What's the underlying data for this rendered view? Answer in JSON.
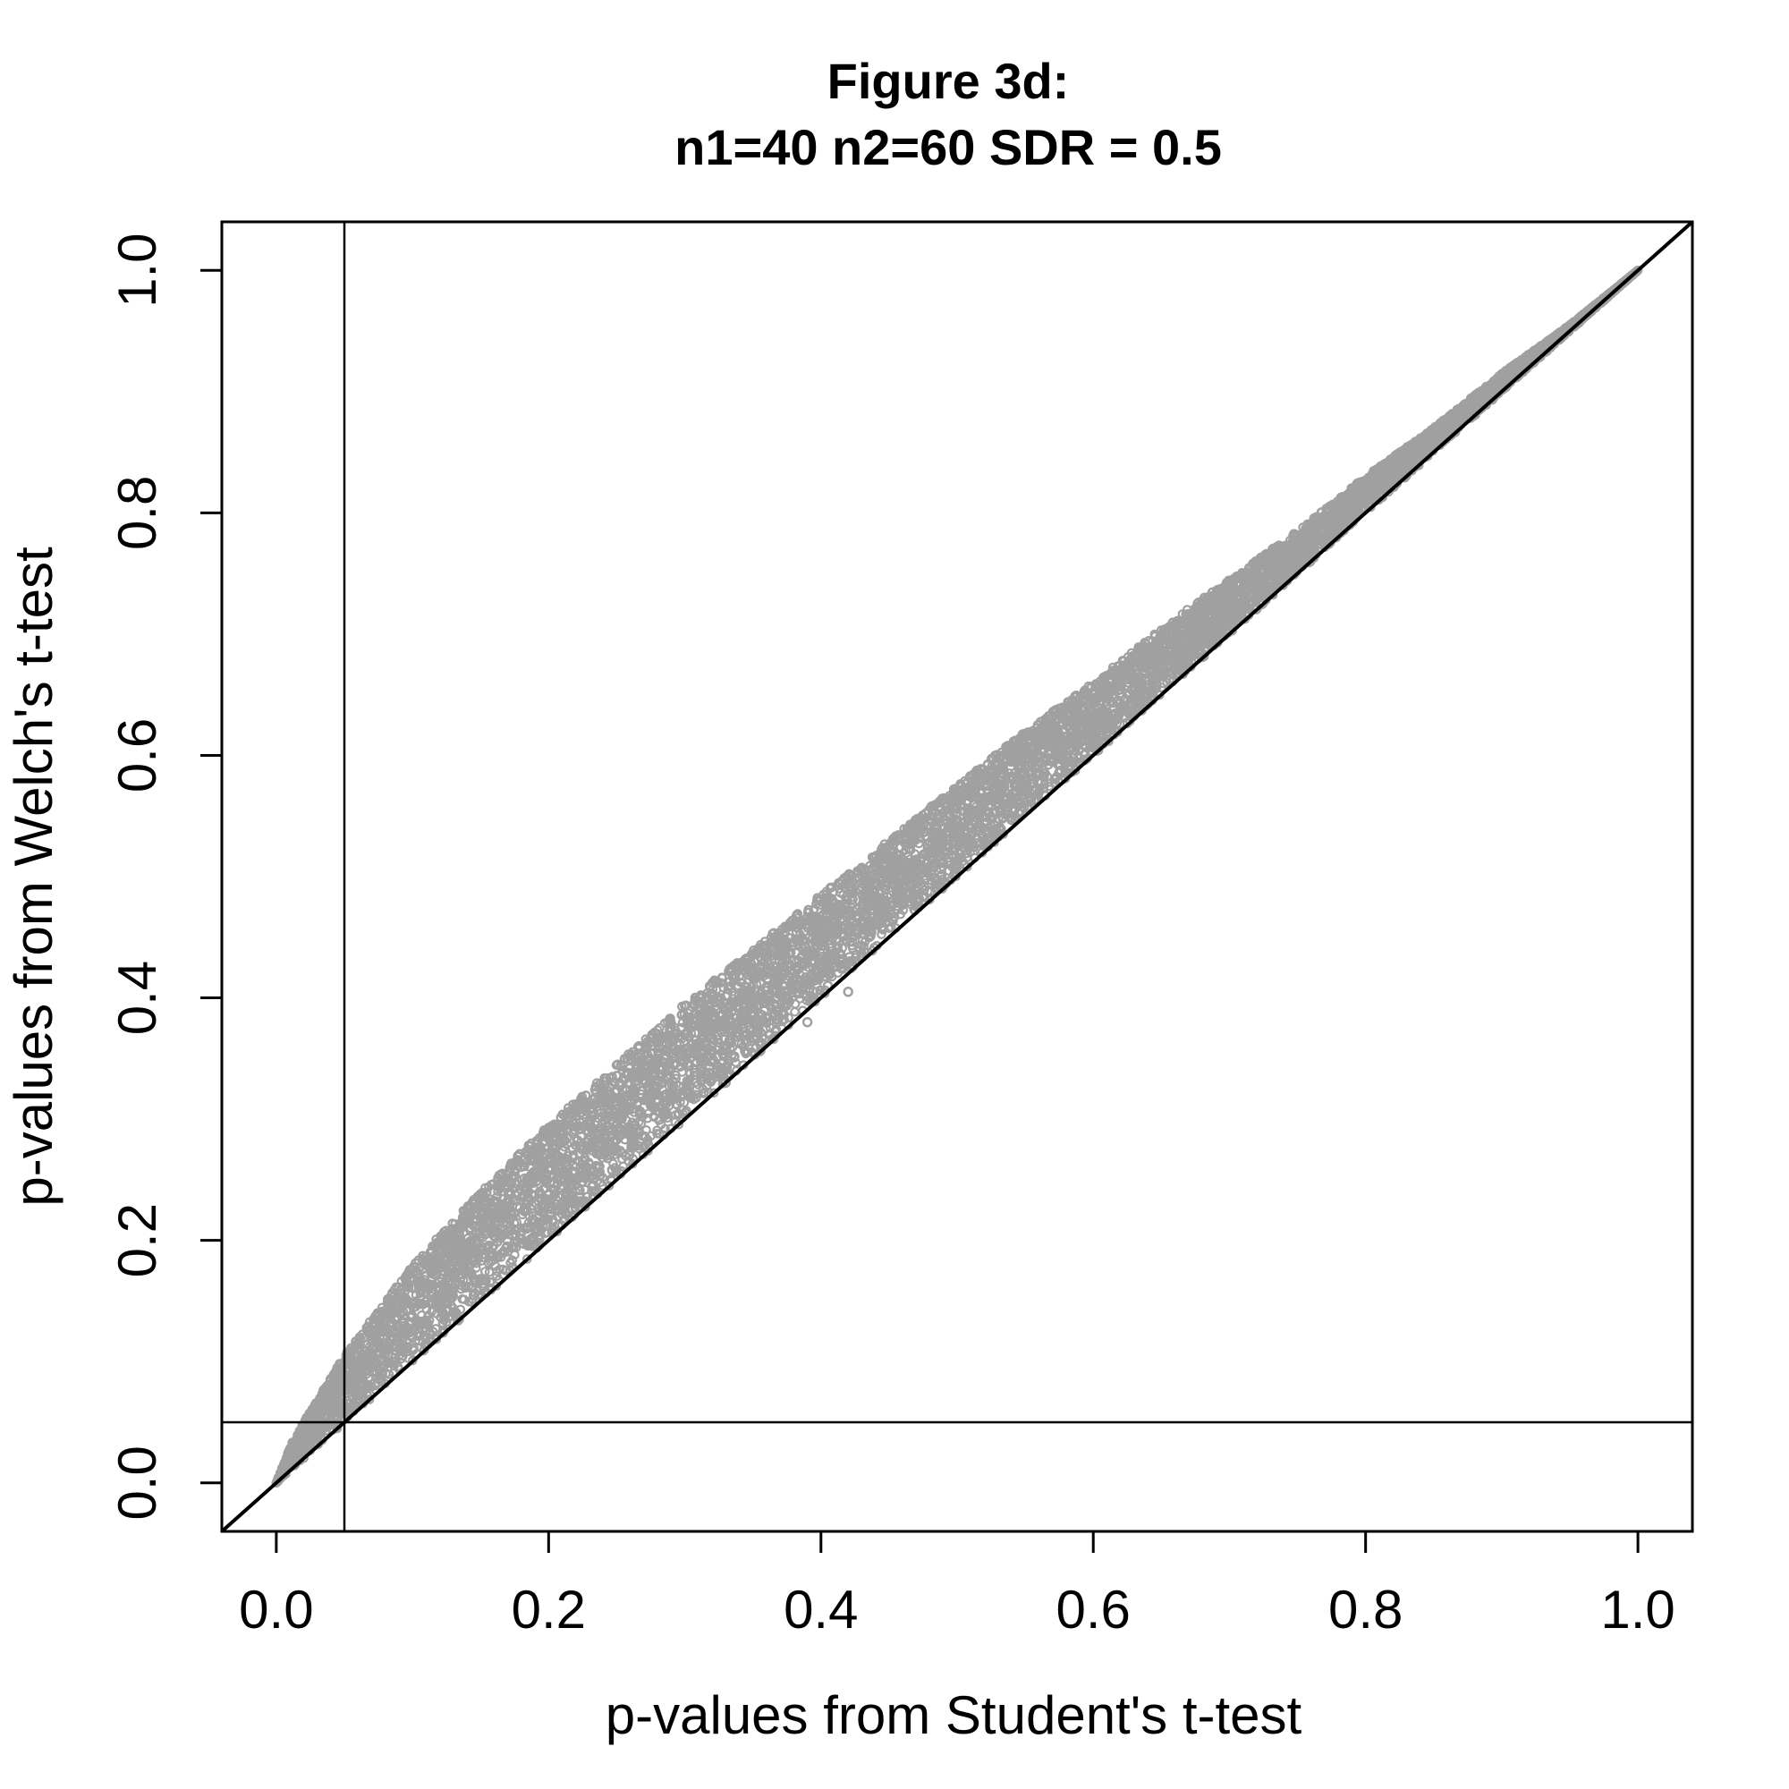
{
  "chart_data": {
    "type": "scatter",
    "title_line1": "Figure 3d:",
    "title_line2": "n1=40   n2=60   SDR = 0.5",
    "xlabel": "p-values from Student's t-test",
    "ylabel": "p-values from Welch's t-test",
    "xlim": [
      -0.04,
      1.04
    ],
    "ylim": [
      -0.04,
      1.04
    ],
    "x_ticks": [
      0.0,
      0.2,
      0.4,
      0.6,
      0.8,
      1.0
    ],
    "y_ticks": [
      0.0,
      0.2,
      0.4,
      0.6,
      0.8,
      1.0
    ],
    "x_tick_labels": [
      "0.0",
      "0.2",
      "0.4",
      "0.6",
      "0.8",
      "1.0"
    ],
    "y_tick_labels": [
      "0.0",
      "0.2",
      "0.4",
      "0.6",
      "0.8",
      "1.0"
    ],
    "reference_lines": {
      "diagonal": "y = x",
      "vertical_x": 0.05,
      "horizontal_y": 0.05
    },
    "series": [
      {
        "marker": "open-circle",
        "color": "#a0a0a0",
        "band_x": [
          0.0,
          0.01,
          0.02,
          0.05,
          0.1,
          0.15,
          0.2,
          0.25,
          0.3,
          0.35,
          0.4,
          0.45,
          0.5,
          0.55,
          0.6,
          0.65,
          0.7,
          0.75,
          0.8,
          0.85,
          0.9,
          0.95,
          1.0
        ],
        "band_upper_y": [
          0.0,
          0.03,
          0.05,
          0.105,
          0.18,
          0.24,
          0.295,
          0.345,
          0.395,
          0.44,
          0.485,
          0.53,
          0.575,
          0.62,
          0.66,
          0.705,
          0.745,
          0.785,
          0.83,
          0.87,
          0.915,
          0.955,
          1.0
        ],
        "band_lower_y": [
          0.0,
          0.01,
          0.02,
          0.05,
          0.1,
          0.15,
          0.2,
          0.25,
          0.3,
          0.35,
          0.4,
          0.45,
          0.5,
          0.55,
          0.6,
          0.65,
          0.7,
          0.75,
          0.8,
          0.85,
          0.9,
          0.95,
          1.0
        ],
        "outliers": [
          {
            "x": 0.39,
            "y": 0.38
          },
          {
            "x": 0.42,
            "y": 0.405
          },
          {
            "x": 0.415,
            "y": 0.425
          },
          {
            "x": 0.405,
            "y": 0.41
          },
          {
            "x": 0.33,
            "y": 0.33
          },
          {
            "x": 0.22,
            "y": 0.23
          }
        ]
      }
    ],
    "grid": false,
    "legend": "none"
  },
  "colors": {
    "points": "#a0a0a0",
    "lines": "#000000",
    "background": "#ffffff"
  }
}
